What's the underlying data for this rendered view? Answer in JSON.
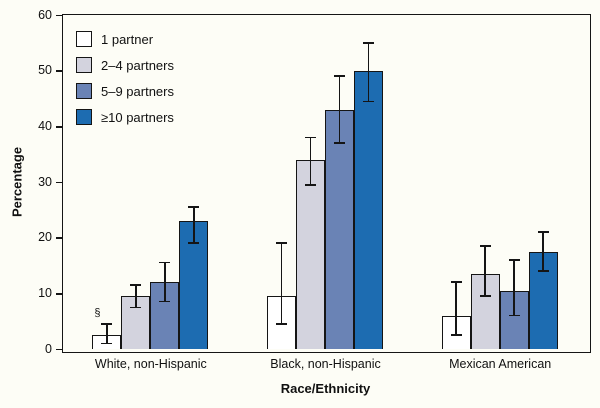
{
  "chart_data": {
    "type": "bar",
    "title": "",
    "xlabel": "Race/Ethnicity",
    "ylabel": "Percentage",
    "ylim": [
      0,
      60
    ],
    "yticks": [
      0,
      10,
      20,
      30,
      40,
      50,
      60
    ],
    "grid": false,
    "legend_position": "upper-left",
    "frame_color": "#151515",
    "background_color": "#fdfdf6",
    "categories": [
      "White, non-Hispanic",
      "Black, non-Hispanic",
      "Mexican American"
    ],
    "series": [
      {
        "name": "1 partner",
        "color": "#ffffff",
        "values": [
          2.5,
          9.5,
          6
        ],
        "error_low": [
          1,
          4.5,
          2.5
        ],
        "error_high": [
          4.5,
          19,
          12
        ]
      },
      {
        "name": "2–4 partners",
        "color": "#d3d3de",
        "values": [
          9.5,
          34,
          13.5
        ],
        "error_low": [
          7.5,
          29.5,
          9.5
        ],
        "error_high": [
          11.5,
          38,
          18.5
        ]
      },
      {
        "name": "5–9 partners",
        "color": "#6a83b5",
        "values": [
          12,
          43,
          10.5
        ],
        "error_low": [
          8.5,
          37,
          6
        ],
        "error_high": [
          15.5,
          49,
          16
        ]
      },
      {
        "name": "≥10 partners",
        "color": "#1d6cb1",
        "values": [
          23,
          50,
          17.5
        ],
        "error_low": [
          19,
          44.5,
          14
        ],
        "error_high": [
          25.5,
          55,
          21
        ]
      }
    ],
    "annotations": [
      {
        "text": "§",
        "category_index": 0,
        "series_index": 0
      }
    ]
  }
}
